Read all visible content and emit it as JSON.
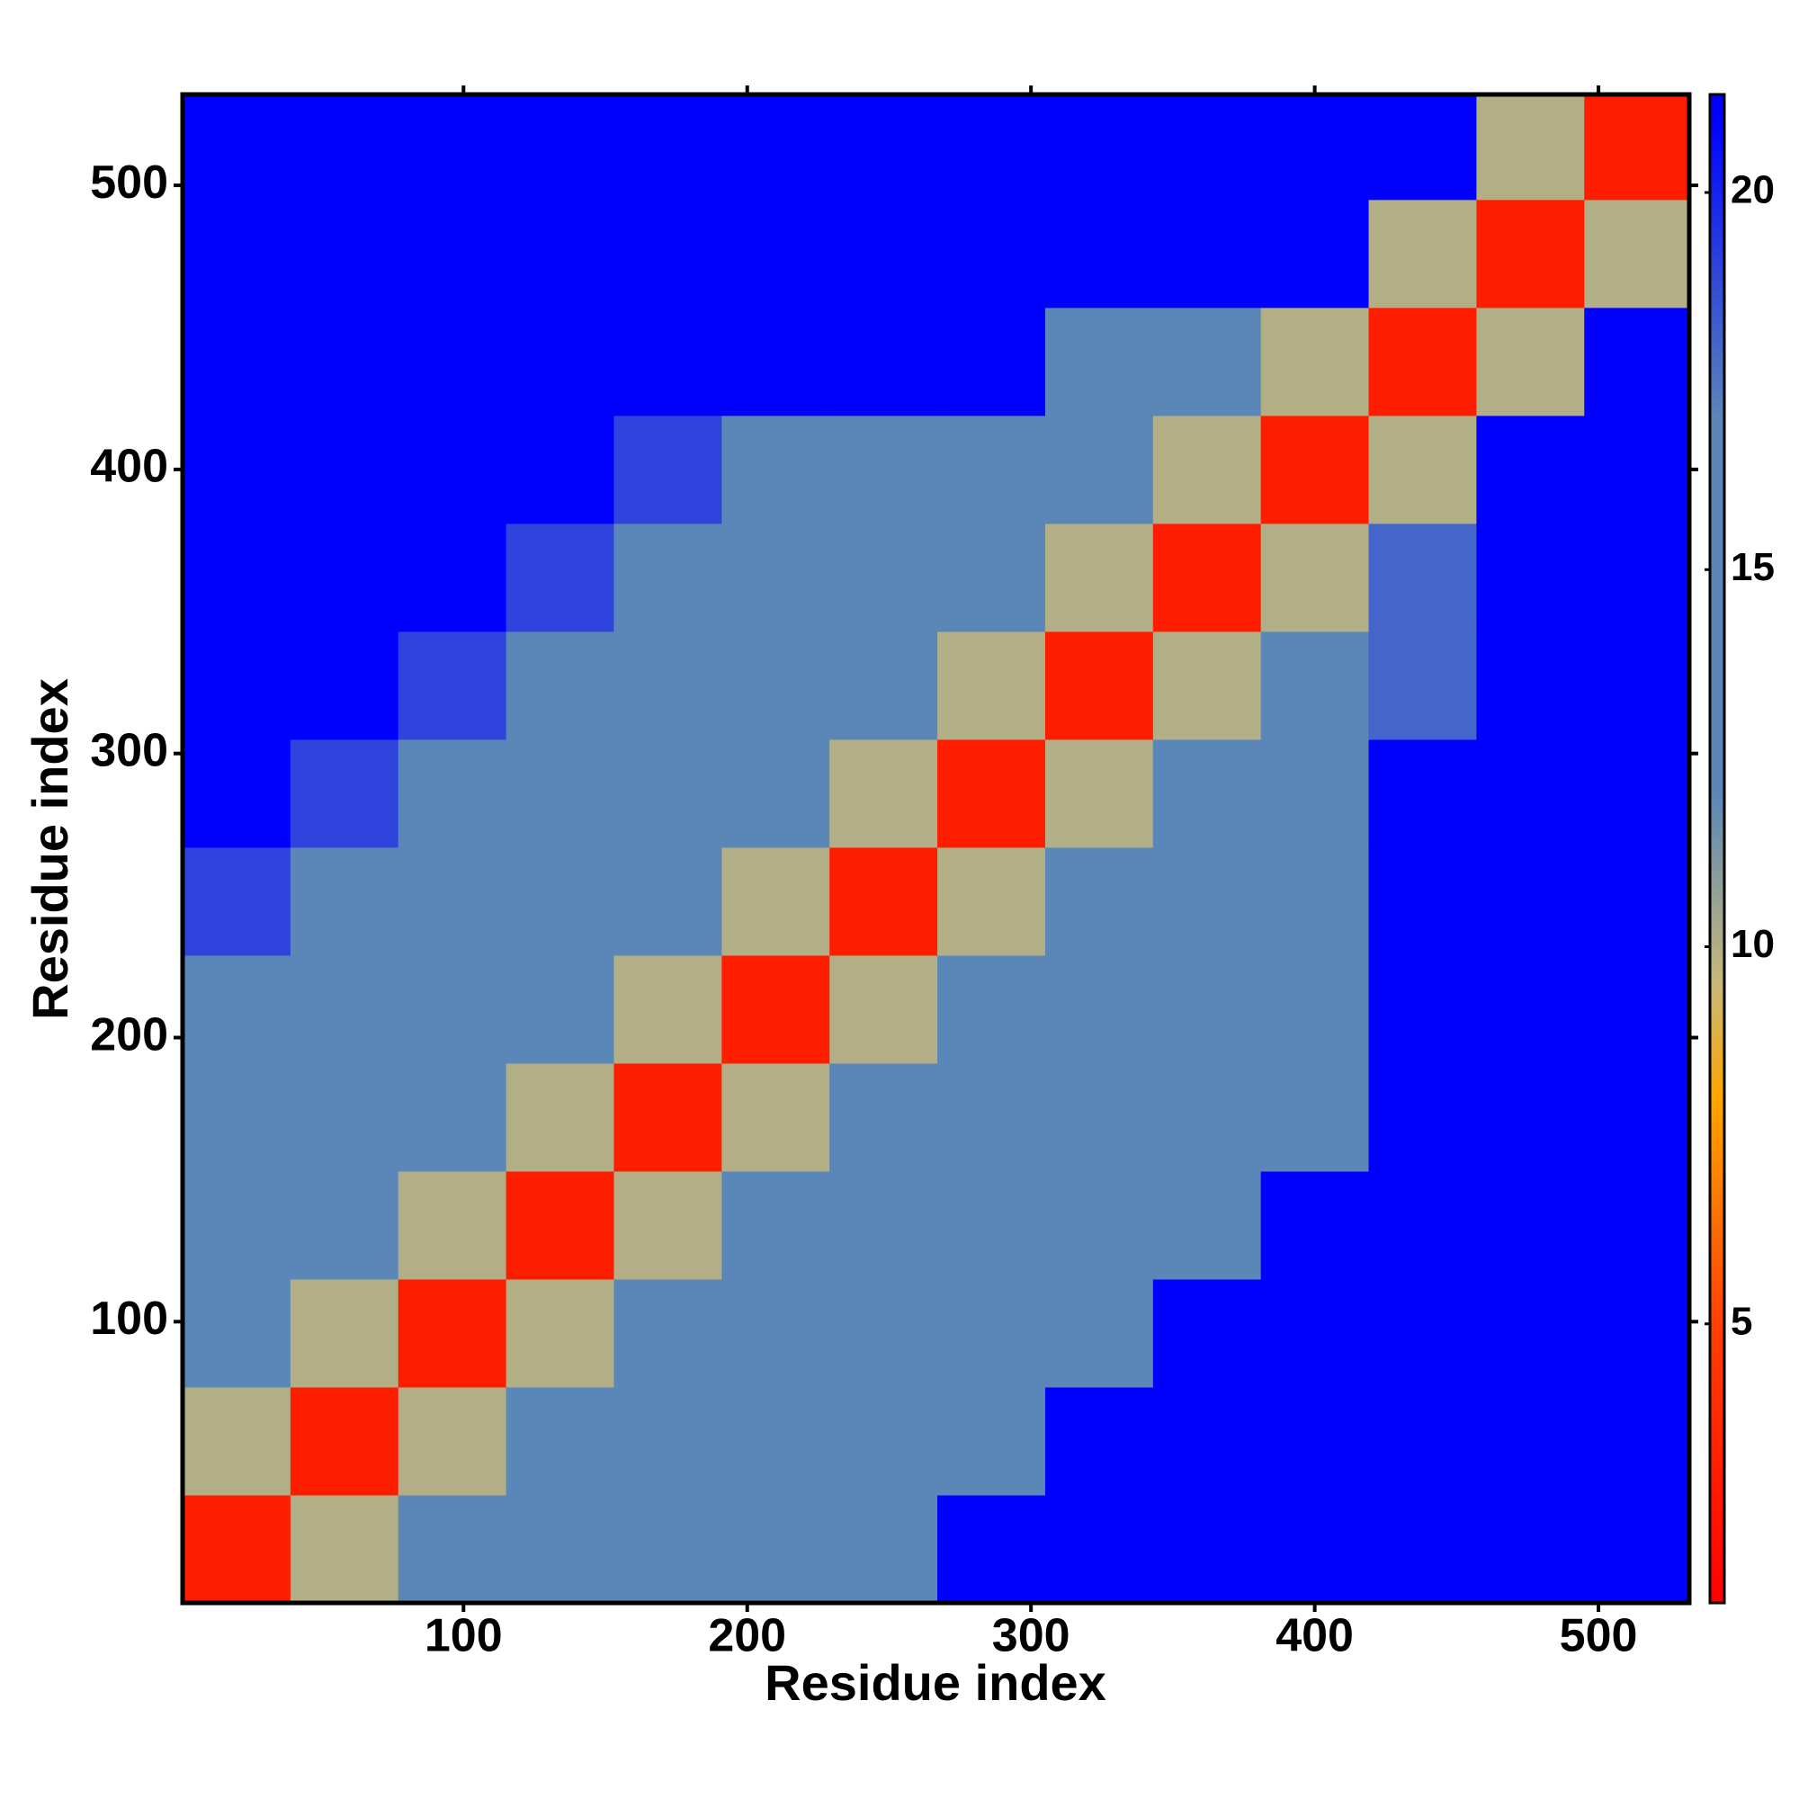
{
  "chart_data": {
    "type": "heatmap",
    "xlabel": "Residue index",
    "ylabel": "Residue index",
    "x": [
      20,
      58,
      96,
      134,
      172,
      210,
      248,
      286,
      324,
      362,
      400,
      438,
      476,
      514
    ],
    "y": [
      20,
      58,
      96,
      134,
      172,
      210,
      248,
      286,
      324,
      362,
      400,
      438,
      476,
      514
    ],
    "z": [
      [
        3,
        10,
        16,
        16,
        16,
        16,
        16,
        21,
        21,
        21,
        21,
        21,
        21,
        21
      ],
      [
        10,
        3,
        10,
        16,
        16,
        16,
        16,
        16,
        21,
        21,
        21,
        21,
        21,
        21
      ],
      [
        16,
        10,
        3,
        10,
        16,
        16,
        16,
        16,
        16,
        21,
        21,
        21,
        21,
        21
      ],
      [
        16,
        16,
        10,
        3,
        10,
        16,
        16,
        16,
        16,
        16,
        21,
        21,
        21,
        21
      ],
      [
        16,
        16,
        16,
        10,
        3,
        10,
        16,
        16,
        16,
        16,
        16,
        21,
        21,
        21
      ],
      [
        16,
        16,
        16,
        16,
        10,
        3,
        10,
        16,
        16,
        16,
        16,
        21,
        21,
        21
      ],
      [
        19,
        16,
        16,
        16,
        16,
        10,
        3,
        10,
        16,
        16,
        16,
        21,
        21,
        21
      ],
      [
        21,
        19,
        16,
        16,
        16,
        16,
        10,
        3,
        10,
        16,
        16,
        21,
        21,
        21
      ],
      [
        21,
        21,
        19,
        16,
        16,
        16,
        16,
        10,
        3,
        10,
        16,
        18,
        21,
        21
      ],
      [
        21,
        21,
        21,
        19,
        16,
        16,
        16,
        16,
        10,
        3,
        10,
        18,
        21,
        21
      ],
      [
        21,
        21,
        21,
        21,
        19,
        16,
        16,
        16,
        16,
        10,
        3,
        10,
        21,
        21
      ],
      [
        21,
        21,
        21,
        21,
        21,
        21,
        21,
        21,
        17,
        17,
        10,
        3,
        10,
        21
      ],
      [
        21,
        21,
        21,
        21,
        21,
        21,
        21,
        21,
        21,
        21,
        21,
        10,
        3,
        10
      ],
      [
        21,
        21,
        21,
        21,
        21,
        21,
        21,
        21,
        21,
        21,
        21,
        21,
        10,
        3
      ]
    ],
    "xlim": [
      1,
      532
    ],
    "ylim": [
      1,
      532
    ],
    "xticks": [
      100,
      200,
      300,
      400,
      500
    ],
    "yticks": [
      100,
      200,
      300,
      400,
      500
    ],
    "zlim": [
      1.3,
      21.3
    ],
    "zticks": [
      5,
      10,
      15,
      20
    ],
    "colorscale": [
      [
        1.3,
        "#ff0000"
      ],
      [
        5,
        "#ff4000"
      ],
      [
        8,
        "#ffa500"
      ],
      [
        9.5,
        "#c8b878"
      ],
      [
        12,
        "#5b87b8"
      ],
      [
        17,
        "#5b87b8"
      ],
      [
        21,
        "#0000ff"
      ]
    ]
  }
}
